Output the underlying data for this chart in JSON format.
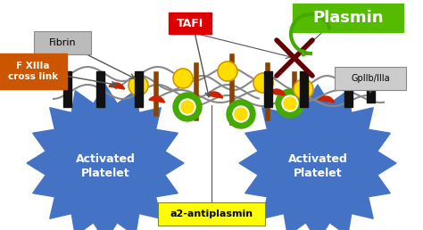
{
  "background_color": "#ffffff",
  "platelet_color": "#4472c4",
  "platelet_text": "Activated\nPlatelet",
  "platelet_text_color": "white",
  "platelet_text_fontsize": 9,
  "fibrin_label": "Fibrin",
  "fxiii_label": "F XIIIa\ncross link",
  "tafi_label": "TAFI",
  "plasmin_label": "Plasmin",
  "gpilb_label": "GpIIb/IIIa",
  "a2_label": "a2-antiplasmin",
  "tafi_box_color": "#dd0000",
  "tafi_text_color": "white",
  "plasmin_box_color": "#55bb00",
  "plasmin_text_color": "white",
  "gpilb_box_color": "#cccccc",
  "a2_box_color": "#ffff00",
  "fibrin_box_color": "#bbbbbb",
  "fxiii_box_color": "#cc5500",
  "fxiii_text_color": "white",
  "fibrin_line_color": "#888888",
  "receptor_color": "#111111",
  "yellow_blob_color": "#ffdd00",
  "red_blob_color": "#cc2200",
  "green_ring_color": "#44aa00",
  "brown_post_color": "#884400",
  "cross_color": "#660000",
  "arrow_color": "#555555"
}
